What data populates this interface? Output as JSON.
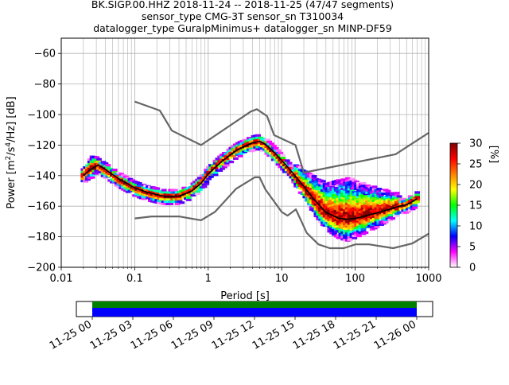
{
  "header": {
    "title_lines": [
      "BK.SIGP.00.HHZ   2018-11-24 -- 2018-11-25  (47/47 segments)",
      "sensor_type CMG-3T sensor_sn T310034",
      "datalogger_type GuralpMinimus+ datalogger_sn MINP-DF59"
    ]
  },
  "chart_data": {
    "type": "heatmap",
    "title": "BK.SIGP.00.HHZ   2018-11-24 -- 2018-11-25  (47/47 segments)",
    "xlabel": "Period [s]",
    "ylabel_parts": {
      "pre": "Power [m",
      "sup1": "2",
      "mid": "/s",
      "sup2": "4",
      "post": "/Hz] [dB]"
    },
    "xscale": "log",
    "xlim": [
      0.01,
      1000
    ],
    "ylim": [
      -200,
      -50
    ],
    "grid": true,
    "x_ticks": [
      0.01,
      0.1,
      1,
      10,
      100,
      1000
    ],
    "x_tick_labels": [
      "0.01",
      "0.1",
      "1",
      "10",
      "100",
      "1000"
    ],
    "y_ticks": [
      -200,
      -180,
      -160,
      -140,
      -120,
      -100,
      -80,
      -60
    ],
    "y_tick_labels": [
      "−200",
      "−180",
      "−160",
      "−140",
      "−120",
      "−100",
      "−80",
      "−60"
    ],
    "colorbar": {
      "label": "[%]",
      "range": [
        0,
        30
      ],
      "ticks": [
        0,
        5,
        10,
        15,
        20,
        25,
        30
      ],
      "tick_labels": [
        "0",
        "5",
        "10",
        "15",
        "20",
        "25",
        "30"
      ],
      "colormap": [
        "#ffffff",
        "#ff00ff",
        "#0000ff",
        "#00ffff",
        "#00ff00",
        "#ffff00",
        "#ff8000",
        "#ff0000",
        "#800000"
      ]
    },
    "noise_models": {
      "color": "#666666",
      "high_noise_model": [
        [
          0.1,
          -91.5
        ],
        [
          0.22,
          -97.4
        ],
        [
          0.32,
          -110.5
        ],
        [
          0.8,
          -120
        ],
        [
          3.8,
          -98
        ],
        [
          4.6,
          -96.5
        ],
        [
          6.3,
          -101
        ],
        [
          7.9,
          -113.5
        ],
        [
          15.4,
          -120
        ],
        [
          20,
          -138
        ],
        [
          354.8,
          -126
        ],
        [
          1000,
          -112
        ]
      ],
      "low_noise_model": [
        [
          0.1,
          -168
        ],
        [
          0.17,
          -166.7
        ],
        [
          0.4,
          -166.7
        ],
        [
          0.8,
          -169.2
        ],
        [
          1.24,
          -163.7
        ],
        [
          2.4,
          -148.6
        ],
        [
          4.3,
          -141.1
        ],
        [
          5,
          -141.1
        ],
        [
          6,
          -149
        ],
        [
          10,
          -163.8
        ],
        [
          12,
          -166.2
        ],
        [
          15.6,
          -162.1
        ],
        [
          21.9,
          -177.5
        ],
        [
          31.6,
          -185
        ],
        [
          45,
          -187.5
        ],
        [
          70,
          -187.5
        ],
        [
          101,
          -185
        ],
        [
          154,
          -185
        ],
        [
          328,
          -187.5
        ],
        [
          600,
          -184.4
        ],
        [
          1000,
          -178
        ]
      ]
    },
    "mean_curve": {
      "color": "#000000",
      "points": [
        [
          0.02,
          -140
        ],
        [
          0.025,
          -136
        ],
        [
          0.032,
          -133
        ],
        [
          0.04,
          -136
        ],
        [
          0.06,
          -142
        ],
        [
          0.1,
          -148
        ],
        [
          0.15,
          -151
        ],
        [
          0.25,
          -153.5
        ],
        [
          0.4,
          -153.5
        ],
        [
          0.6,
          -150
        ],
        [
          0.8,
          -145
        ],
        [
          1,
          -139
        ],
        [
          1.5,
          -131
        ],
        [
          2.5,
          -123
        ],
        [
          4,
          -118.5
        ],
        [
          5,
          -117.5
        ],
        [
          6,
          -119.5
        ],
        [
          8,
          -125
        ],
        [
          10,
          -130
        ],
        [
          14,
          -138
        ],
        [
          20,
          -147
        ],
        [
          28,
          -156
        ],
        [
          40,
          -164
        ],
        [
          60,
          -168
        ],
        [
          80,
          -168.5
        ],
        [
          100,
          -168
        ],
        [
          150,
          -166
        ],
        [
          250,
          -163
        ],
        [
          400,
          -160
        ],
        [
          500,
          -159
        ],
        [
          600,
          -157
        ],
        [
          700,
          -155
        ]
      ]
    },
    "histogram_bands": [
      {
        "from": 0.018,
        "to": 0.04,
        "low_offset": -6,
        "high_offset": 8,
        "note": ""
      },
      {
        "from": 15,
        "to": 400,
        "low_offset": -14,
        "high_offset": 28,
        "note": ""
      }
    ]
  },
  "time_coverage": {
    "colors": {
      "coverage_top": "#008000",
      "coverage_bottom": "#0000ff"
    },
    "tick_labels": [
      "11-25 00",
      "11-25 03",
      "11-25 06",
      "11-25 09",
      "11-25 12",
      "11-25 15",
      "11-25 18",
      "11-25 21",
      "11-26 00"
    ]
  }
}
